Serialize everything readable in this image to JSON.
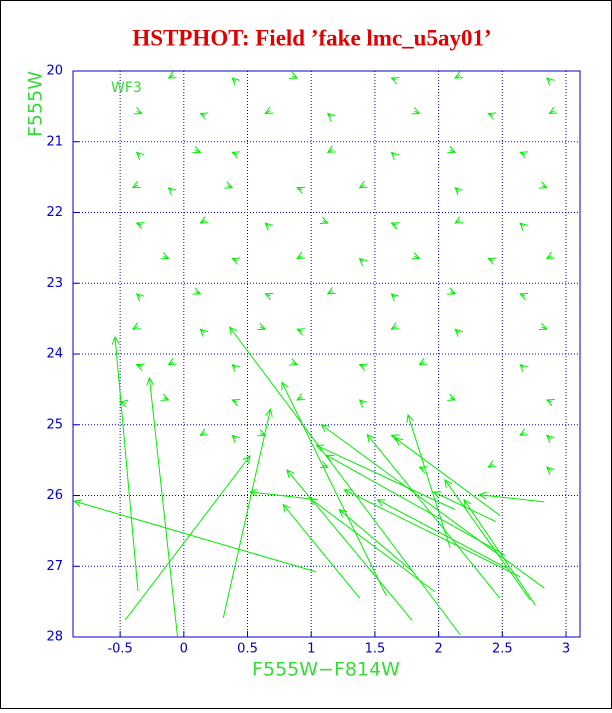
{
  "chart_data": {
    "type": "vector",
    "title": "HSTPHOT: Field ’fake lmc_u5ay01’",
    "annotation": "WF3",
    "x_label": "F555W−F814W",
    "y_label": "F555W",
    "color": "#00ee00",
    "grid": true,
    "xlim": [
      -0.87,
      3.11
    ],
    "ylim": [
      28,
      20
    ],
    "xticks": [
      -0.5,
      0,
      0.5,
      1,
      1.5,
      2,
      2.5,
      3
    ],
    "yticks": [
      20,
      21,
      22,
      23,
      24,
      25,
      26,
      27,
      28
    ],
    "x_head": [
      -0.86,
      -0.54,
      -0.27,
      0.52,
      0.68,
      0.36,
      0.77,
      0.52,
      0.78,
      0.81,
      0.99,
      1.04,
      1.08,
      1.12,
      1.26,
      1.44,
      1.52,
      1.66,
      1.76,
      1.96,
      2.32,
      2.05,
      2.2,
      1.22,
      -0.5,
      -0.12,
      0.38,
      0.89,
      1.63,
      2.13,
      2.85,
      -0.33,
      0.13,
      0.64,
      1.13,
      1.85,
      2.39,
      2.87,
      -0.37,
      0.13,
      0.38,
      1.13,
      1.63,
      2.13,
      2.64,
      -0.4,
      -0.12,
      0.38,
      0.89,
      1.38,
      2.13,
      2.85,
      -0.37,
      0.13,
      0.64,
      1.13,
      1.63,
      2.13,
      2.64,
      -0.12,
      0.38,
      0.89,
      1.38,
      1.85,
      2.39,
      2.85,
      -0.37,
      0.13,
      0.64,
      1.13,
      1.63,
      2.13,
      2.64,
      -0.4,
      0.13,
      0.64,
      0.89,
      1.63,
      2.13,
      2.85,
      -0.37,
      -0.12,
      0.38,
      0.89,
      1.38,
      1.85,
      2.64,
      -0.12,
      0.38,
      0.89,
      1.38,
      2.13,
      2.85,
      0.13,
      0.38,
      0.64,
      1.63,
      2.64,
      2.85,
      1.13,
      1.85,
      2.39,
      2.85
    ],
    "y_head": [
      26.08,
      23.76,
      24.34,
      25.44,
      24.78,
      23.62,
      24.4,
      25.95,
      26.13,
      25.64,
      26.04,
      25.29,
      25,
      25.43,
      25.92,
      25.14,
      26.06,
      25.19,
      24.86,
      25.95,
      25.99,
      25.78,
      26.06,
      26.2,
      24.68,
      20.1,
      20.1,
      20.1,
      20.1,
      20.1,
      20.1,
      20.6,
      20.6,
      20.6,
      20.6,
      20.6,
      20.6,
      20.6,
      21.15,
      21.15,
      21.15,
      21.15,
      21.15,
      21.15,
      21.15,
      21.65,
      21.65,
      21.65,
      21.65,
      21.65,
      21.65,
      21.65,
      22.15,
      22.15,
      22.15,
      22.15,
      22.15,
      22.15,
      22.15,
      22.65,
      22.65,
      22.65,
      22.65,
      22.65,
      22.65,
      22.65,
      23.15,
      23.15,
      23.15,
      23.15,
      23.15,
      23.15,
      23.15,
      23.65,
      23.65,
      23.65,
      23.65,
      23.65,
      23.65,
      23.65,
      24.15,
      24.15,
      24.15,
      24.15,
      24.15,
      24.15,
      24.15,
      24.65,
      24.65,
      24.65,
      24.65,
      24.65,
      24.65,
      25.15,
      25.15,
      25.15,
      25.15,
      25.15,
      25.15,
      25.6,
      25.6,
      25.6,
      25.6
    ],
    "x_tail": [
      1.04,
      -0.36,
      -0.05,
      -0.46,
      0.31,
      2.17,
      1.59,
      1.05,
      1.38,
      1.79,
      1.97,
      2.13,
      2.83,
      2.52,
      2.64,
      2.48,
      2.53,
      2.48,
      2.09,
      2.45,
      2.83,
      2.72,
      2.76,
      1.8,
      -0.45,
      -0.08,
      0.41,
      0.85,
      1.67,
      2.17,
      2.88,
      -0.37,
      0.17,
      0.68,
      1.16,
      1.81,
      2.43,
      2.91,
      -0.34,
      0.09,
      0.42,
      1.17,
      1.66,
      2.09,
      2.68,
      -0.36,
      -0.09,
      0.34,
      0.93,
      1.42,
      2.16,
      2.81,
      -0.33,
      0.17,
      0.67,
      1.09,
      1.67,
      2.17,
      2.67,
      -0.16,
      0.42,
      0.93,
      1.41,
      1.81,
      2.43,
      2.89,
      -0.34,
      0.09,
      0.68,
      1.17,
      1.66,
      2.09,
      2.68,
      -0.36,
      0.16,
      0.6,
      0.93,
      1.67,
      2.16,
      2.81,
      -0.33,
      -0.08,
      0.41,
      0.85,
      1.42,
      1.89,
      2.67,
      -0.16,
      0.42,
      0.93,
      1.41,
      2.09,
      2.89,
      0.17,
      0.41,
      0.6,
      1.67,
      2.68,
      2.88,
      1.09,
      1.89,
      2.43,
      2.88
    ],
    "y_tail": [
      27.08,
      27.35,
      27.99,
      27.76,
      27.73,
      27.97,
      27.42,
      26.06,
      27.45,
      27.76,
      27.36,
      26.2,
      27.31,
      26.84,
      27.15,
      27.45,
      27.02,
      26.28,
      26.74,
      26.37,
      26.09,
      27.48,
      27.55,
      27.08,
      24.7,
      20.06,
      20.15,
      20.07,
      20.13,
      20.06,
      20.15,
      20.57,
      20.63,
      20.56,
      20.65,
      20.57,
      20.63,
      20.56,
      21.2,
      21.12,
      21.18,
      21.11,
      21.2,
      21.12,
      21.18,
      21.61,
      21.7,
      21.62,
      21.68,
      21.61,
      21.7,
      21.62,
      22.18,
      22.11,
      22.2,
      22.12,
      22.18,
      22.11,
      22.2,
      22.62,
      22.68,
      22.61,
      22.7,
      22.62,
      22.68,
      22.61,
      23.2,
      23.12,
      23.18,
      23.11,
      23.2,
      23.12,
      23.18,
      23.61,
      23.7,
      23.62,
      23.68,
      23.61,
      23.7,
      23.62,
      24.18,
      24.11,
      24.2,
      24.12,
      24.18,
      24.11,
      24.2,
      24.62,
      24.68,
      24.61,
      24.7,
      24.62,
      24.68,
      25.11,
      25.2,
      25.12,
      25.18,
      25.11,
      25.2,
      25.57,
      25.63,
      25.56,
      25.65
    ]
  }
}
